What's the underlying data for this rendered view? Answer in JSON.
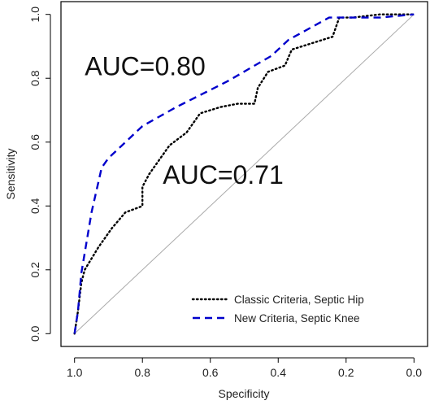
{
  "chart_data": {
    "type": "line",
    "xlabel": "Specificity",
    "ylabel": "Sensitivity",
    "xlim": [
      1.04,
      -0.04
    ],
    "ylim": [
      -0.04,
      1.04
    ],
    "x_reversed": true,
    "x_ticks": [
      1.0,
      0.8,
      0.6,
      0.4,
      0.2,
      0.0
    ],
    "x_tick_labels": [
      "1.0",
      "0.8",
      "0.6",
      "0.4",
      "0.2",
      "0.0"
    ],
    "y_ticks": [
      0.0,
      0.2,
      0.4,
      0.6,
      0.8,
      1.0
    ],
    "y_tick_labels": [
      "0.0",
      "0.2",
      "0.4",
      "0.6",
      "0.8",
      "1.0"
    ],
    "grid": false,
    "legend_position": "bottom-right",
    "reference_line": {
      "from": [
        1.0,
        0.0
      ],
      "to": [
        0.0,
        1.0
      ],
      "color": "#aaaaaa"
    },
    "series": [
      {
        "name": "Classic Criteria, Septic Hip",
        "style": "dotted",
        "color": "#000000",
        "x": [
          1.0,
          0.99,
          0.98,
          0.97,
          0.93,
          0.89,
          0.85,
          0.8,
          0.8,
          0.78,
          0.72,
          0.67,
          0.63,
          0.57,
          0.52,
          0.47,
          0.46,
          0.43,
          0.38,
          0.36,
          0.33,
          0.24,
          0.22,
          0.18,
          0.1,
          0.0
        ],
        "y": [
          0.0,
          0.07,
          0.16,
          0.2,
          0.27,
          0.33,
          0.38,
          0.4,
          0.46,
          0.5,
          0.59,
          0.63,
          0.69,
          0.71,
          0.72,
          0.72,
          0.77,
          0.82,
          0.84,
          0.89,
          0.9,
          0.93,
          0.99,
          0.99,
          1.0,
          1.0
        ]
      },
      {
        "name": "New Criteria, Septic Knee",
        "style": "dashed",
        "color": "#0000cc",
        "x": [
          1.0,
          0.99,
          0.98,
          0.95,
          0.92,
          0.9,
          0.8,
          0.7,
          0.55,
          0.42,
          0.37,
          0.25,
          0.1,
          0.0
        ],
        "y": [
          0.0,
          0.07,
          0.19,
          0.38,
          0.52,
          0.55,
          0.65,
          0.71,
          0.79,
          0.87,
          0.92,
          0.99,
          0.99,
          1.0
        ]
      }
    ],
    "annotations": [
      {
        "text": "AUC=0.80",
        "x": 0.97,
        "y": 0.81
      },
      {
        "text": "AUC=0.71",
        "x": 0.74,
        "y": 0.47
      }
    ]
  }
}
